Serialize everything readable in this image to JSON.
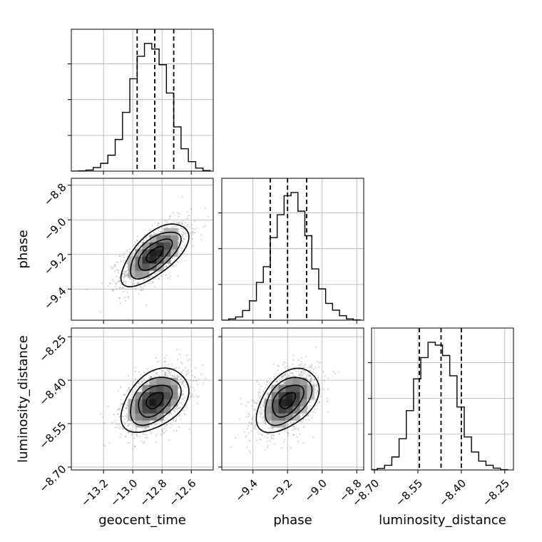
{
  "chart_data": {
    "type": "corner",
    "parameters": [
      "geocent_time",
      "phase",
      "luminosity_distance"
    ],
    "colors": {
      "line": "#000000",
      "grid": "#b0b0b0",
      "points": "#8a8a8a"
    },
    "grid": true,
    "ranges": {
      "geocent_time": [
        -13.42,
        -12.45
      ],
      "phase": [
        -9.58,
        -8.76
      ],
      "luminosity_distance": [
        -8.71,
        -8.22
      ]
    },
    "ticks": {
      "geocent_time": {
        "values": [
          -13.2,
          -13.0,
          -12.8,
          -12.6
        ],
        "labels": [
          "−13.2",
          "−13.0",
          "−12.8",
          "−12.6"
        ]
      },
      "phase": {
        "values": [
          -9.4,
          -9.2,
          -9.0,
          -8.8
        ],
        "labels": [
          "−9.4",
          "−9.2",
          "−9.0",
          "−8.8"
        ]
      },
      "luminosity_distance": {
        "values": [
          -8.7,
          -8.55,
          -8.4,
          -8.25
        ],
        "labels": [
          "−8.70",
          "−8.55",
          "−8.40",
          "−8.25"
        ]
      }
    },
    "quantiles": {
      "geocent_time": [
        -12.97,
        -12.85,
        -12.72
      ],
      "phase": [
        -9.3,
        -9.2,
        -9.09
      ],
      "luminosity_distance": [
        -8.545,
        -8.47,
        -8.4
      ]
    },
    "histograms": {
      "geocent_time": {
        "edges": [
          -13.42,
          -13.37,
          -13.32,
          -13.27,
          -13.22,
          -13.17,
          -13.12,
          -13.07,
          -13.02,
          -12.97,
          -12.92,
          -12.87,
          -12.82,
          -12.77,
          -12.72,
          -12.67,
          -12.62,
          -12.57,
          -12.52,
          -12.47
        ],
        "counts": [
          0,
          1,
          4,
          13,
          28,
          57,
          113,
          210,
          330,
          410,
          456,
          436,
          380,
          279,
          158,
          80,
          34,
          11,
          2
        ]
      },
      "phase": {
        "edges": [
          -9.58,
          -9.54,
          -9.5,
          -9.46,
          -9.42,
          -9.38,
          -9.34,
          -9.3,
          -9.26,
          -9.22,
          -9.18,
          -9.14,
          -9.1,
          -9.06,
          -9.02,
          -8.98,
          -8.94,
          -8.9,
          -8.86,
          -8.82,
          -8.78
        ],
        "counts": [
          0,
          4,
          10,
          30,
          60,
          117,
          166,
          256,
          327,
          386,
          396,
          338,
          262,
          159,
          97,
          52,
          31,
          14,
          4,
          1
        ]
      },
      "luminosity_distance": {
        "edges": [
          -8.715,
          -8.69,
          -8.665,
          -8.64,
          -8.615,
          -8.59,
          -8.565,
          -8.54,
          -8.515,
          -8.49,
          -8.465,
          -8.44,
          -8.415,
          -8.39,
          -8.365,
          -8.34,
          -8.315,
          -8.29,
          -8.265,
          -8.24
        ],
        "counts": [
          1,
          6,
          18,
          50,
          120,
          228,
          350,
          432,
          491,
          480,
          440,
          362,
          242,
          127,
          69,
          34,
          18,
          7,
          1
        ]
      }
    },
    "bivariate": {
      "geocent_time": {
        "mean": -12.85,
        "sd": 0.115
      },
      "phase": {
        "mean": -9.2,
        "sd": 0.09
      },
      "luminosity_distance": {
        "mean": -8.47,
        "sd": 0.055
      },
      "correlations": {
        "geocent_time|phase": 0.65,
        "geocent_time|luminosity_distance": 0.4,
        "phase|luminosity_distance": 0.45
      },
      "contour_levels_sigma": [
        0.5,
        1.0,
        1.5,
        2.0
      ]
    }
  }
}
